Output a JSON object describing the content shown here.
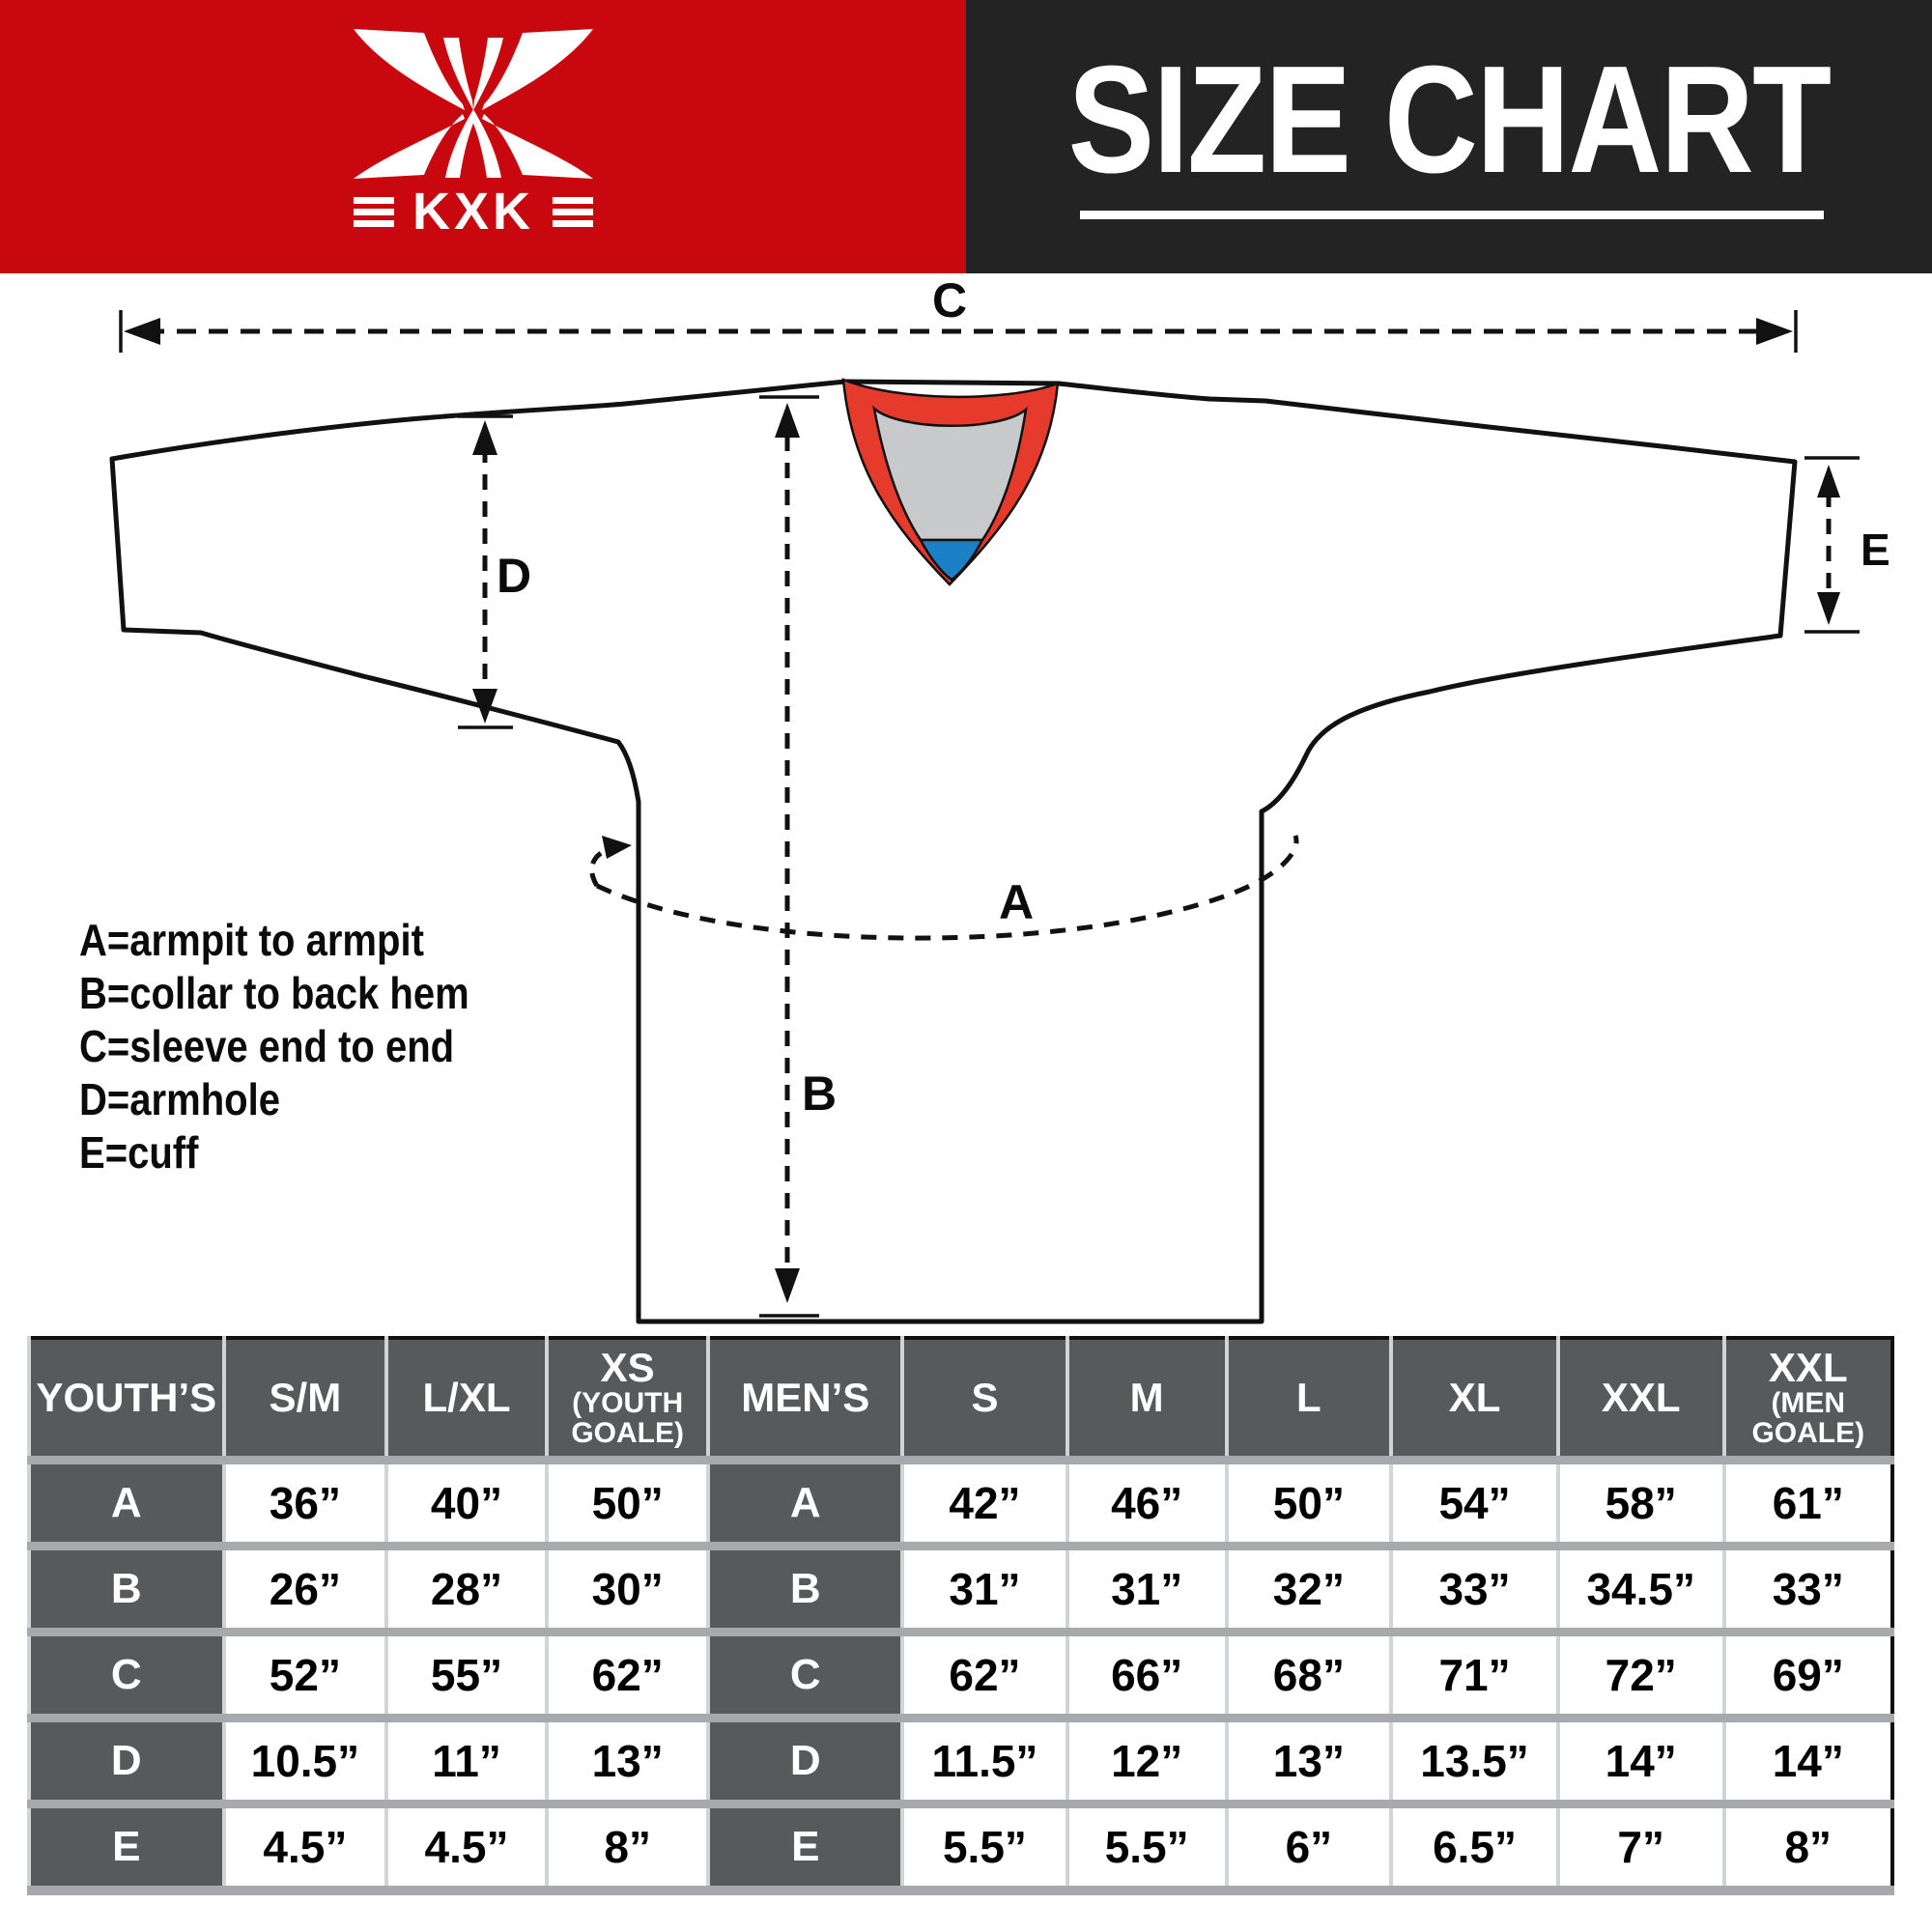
{
  "header": {
    "brand": "KXK",
    "title": "SIZE CHART",
    "banner_red": "#c9070e",
    "banner_dark": "#232323"
  },
  "diagram": {
    "labels": {
      "a": "A",
      "b": "B",
      "c": "C",
      "d": "D",
      "e": "E"
    },
    "legend": [
      "A=armpit to armpit",
      "B=collar to back hem",
      "C=sleeve end to end",
      "D=armhole",
      "E=cuff"
    ],
    "collar_colors": {
      "trim": "#e63a2c",
      "inner": "#c8c9ca",
      "insert": "#1b80c5"
    }
  },
  "table": {
    "header_bg": "#58595b",
    "row_separator": "#a7a9ac",
    "columns": [
      {
        "label": "YOUTH’S",
        "sub": ""
      },
      {
        "label": "S/M",
        "sub": ""
      },
      {
        "label": "L/XL",
        "sub": ""
      },
      {
        "label": "XS",
        "sub": "(YOUTH GOALE)"
      },
      {
        "label": "MEN’S",
        "sub": ""
      },
      {
        "label": "S",
        "sub": ""
      },
      {
        "label": "M",
        "sub": ""
      },
      {
        "label": "L",
        "sub": ""
      },
      {
        "label": "XL",
        "sub": ""
      },
      {
        "label": "XXL",
        "sub": ""
      },
      {
        "label": "XXL",
        "sub": "(MEN GOALE)"
      }
    ],
    "rows": [
      {
        "label": "A",
        "youth": [
          "36”",
          "40”",
          "50”"
        ],
        "mens": [
          "42”",
          "46”",
          "50”",
          "54”",
          "58”",
          "61”"
        ]
      },
      {
        "label": "B",
        "youth": [
          "26”",
          "28”",
          "30”"
        ],
        "mens": [
          "31”",
          "31”",
          "32”",
          "33”",
          "34.5”",
          "33”"
        ]
      },
      {
        "label": "C",
        "youth": [
          "52”",
          "55”",
          "62”"
        ],
        "mens": [
          "62”",
          "66”",
          "68”",
          "71”",
          "72”",
          "69”"
        ]
      },
      {
        "label": "D",
        "youth": [
          "10.5”",
          "11”",
          "13”"
        ],
        "mens": [
          "11.5”",
          "12”",
          "13”",
          "13.5”",
          "14”",
          "14”"
        ]
      },
      {
        "label": "E",
        "youth": [
          "4.5”",
          "4.5”",
          "8”"
        ],
        "mens": [
          "5.5”",
          "5.5”",
          "6”",
          "6.5”",
          "7”",
          "8”"
        ]
      }
    ]
  }
}
